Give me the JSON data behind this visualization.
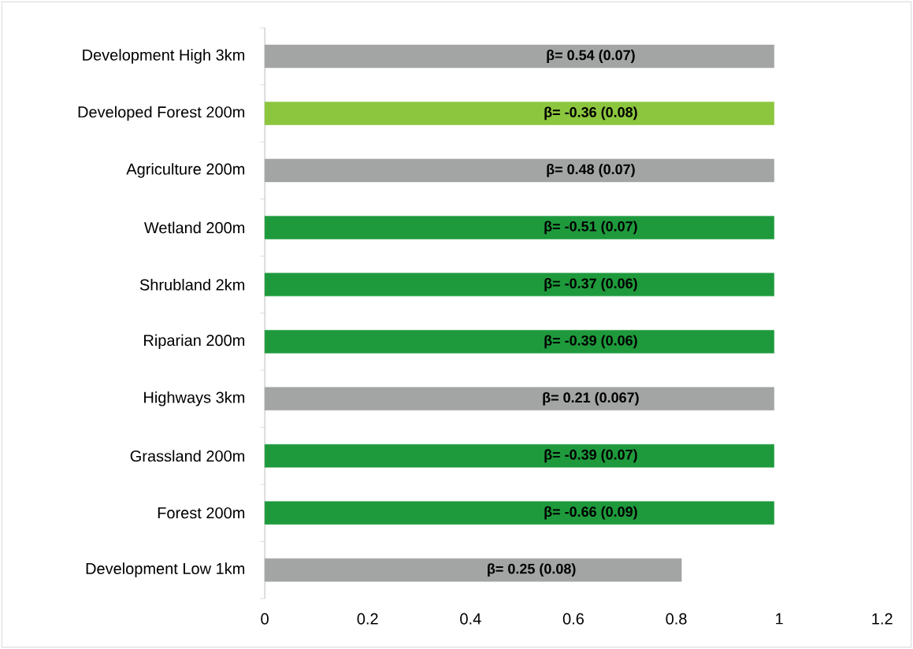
{
  "chart_data": {
    "type": "bar",
    "orientation": "horizontal",
    "categories": [
      "Development High 3km",
      "Developed Forest 200m",
      "Agriculture 200m",
      "Wetland 200m",
      "Shrubland 2km",
      "Riparian 200m",
      "Highways 3km",
      "Grassland 200m",
      "Forest 200m",
      "Development Low 1km"
    ],
    "values": [
      0.99,
      0.99,
      0.99,
      0.99,
      0.99,
      0.99,
      0.99,
      0.99,
      0.99,
      0.81
    ],
    "colors": [
      "#a3a5a4",
      "#8cc63e",
      "#a3a5a4",
      "#1e9a3c",
      "#1e9a3c",
      "#1e9a3c",
      "#a3a5a4",
      "#1e9a3c",
      "#1e9a3c",
      "#a3a5a4"
    ],
    "value_labels": [
      "β= 0.54 (0.07)",
      "β= -0.36 (0.08)",
      "β= 0.48 (0.07)",
      "β= -0.51 (0.07)",
      "β= -0.37 (0.06)",
      "β= -0.39 (0.06)",
      "β= 0.21 (0.067)",
      "β= -0.39 (0.07)",
      "β= -0.66 (0.09)",
      "β= 0.25 (0.08)"
    ],
    "xlim": [
      0,
      1.2
    ],
    "xticks": [
      0,
      0.2,
      0.4,
      0.6,
      0.8,
      1,
      1.2
    ]
  }
}
